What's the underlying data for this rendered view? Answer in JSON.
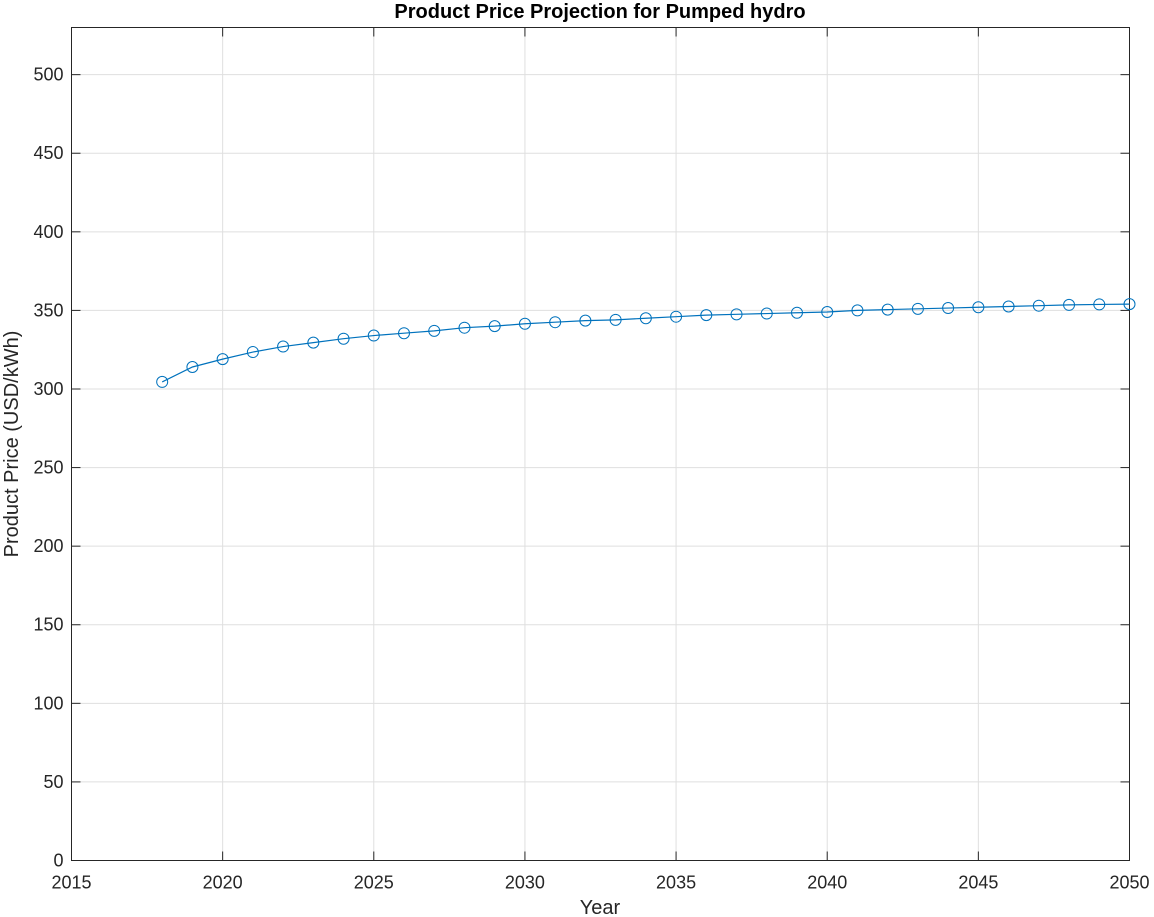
{
  "chart_data": {
    "type": "line",
    "title": "Product Price Projection for Pumped hydro",
    "xlabel": "Year",
    "ylabel": "Product Price (USD/kWh)",
    "xlim": [
      2015,
      2050
    ],
    "ylim": [
      0,
      530
    ],
    "xticks": [
      2015,
      2020,
      2025,
      2030,
      2035,
      2040,
      2045,
      2050
    ],
    "yticks": [
      0,
      50,
      100,
      150,
      200,
      250,
      300,
      350,
      400,
      450,
      500
    ],
    "grid": true,
    "marker": "circle",
    "color": "#0072BD",
    "series": [
      {
        "x": [
          2018,
          2019,
          2020,
          2021,
          2022,
          2023,
          2024,
          2025,
          2026,
          2027,
          2028,
          2029,
          2030,
          2031,
          2032,
          2033,
          2034,
          2035,
          2036,
          2037,
          2038,
          2039,
          2040,
          2041,
          2042,
          2043,
          2044,
          2045,
          2046,
          2047,
          2048,
          2049,
          2050
        ],
        "values": [
          304.5,
          314,
          319,
          323.5,
          327,
          329.5,
          332,
          334,
          335.5,
          337,
          339,
          340,
          341.5,
          342.5,
          343.5,
          344,
          345,
          346,
          347,
          347.5,
          348,
          348.5,
          349,
          350,
          350.5,
          351,
          351.5,
          352,
          352.5,
          353,
          353.5,
          353.8,
          354
        ]
      }
    ]
  }
}
